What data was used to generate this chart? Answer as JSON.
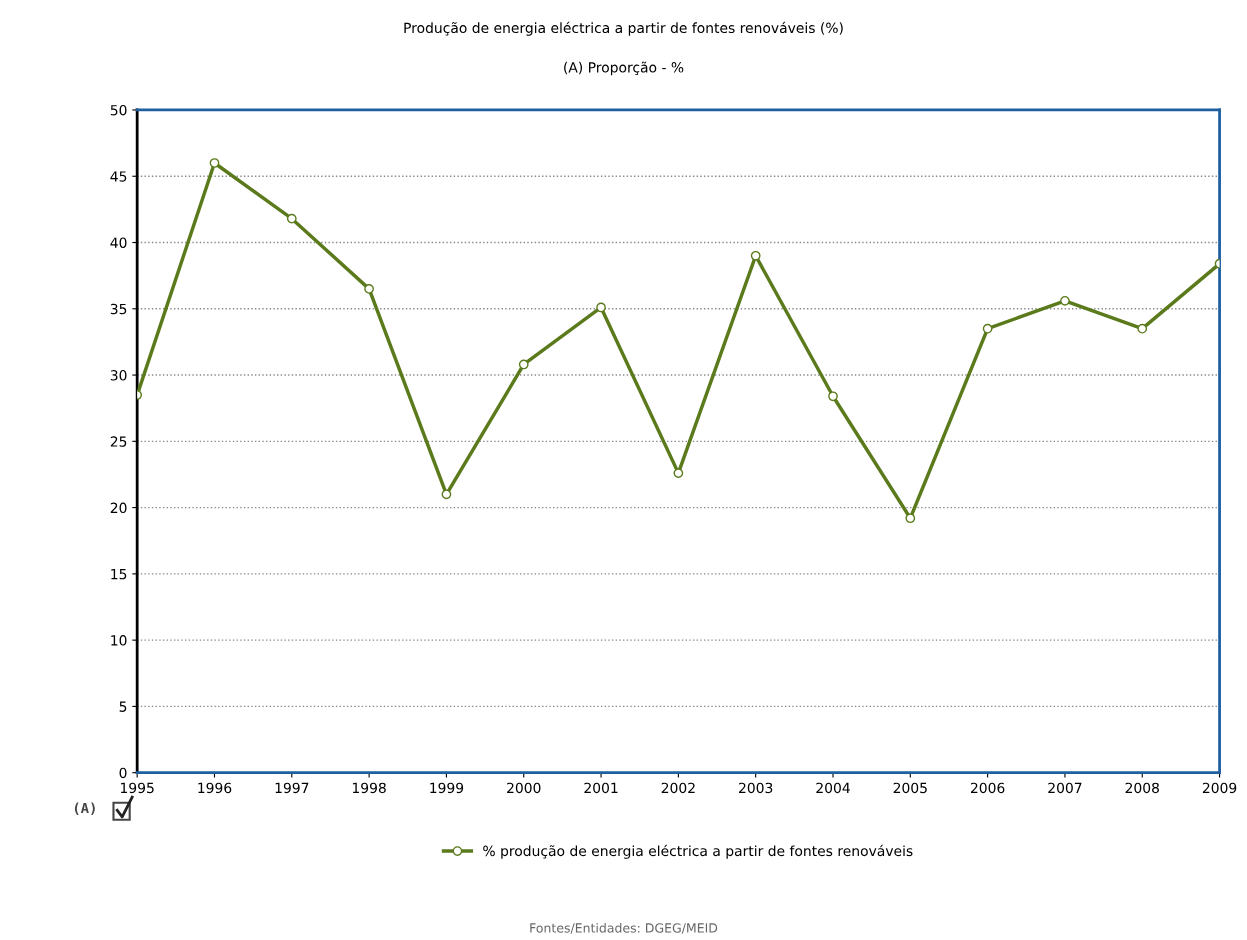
{
  "chart_data": {
    "type": "line",
    "title": "Produção de energia eléctrica a partir de fontes renováveis (%)",
    "subtitle": "(A) Proporção - %",
    "categories": [
      "1995",
      "1996",
      "1997",
      "1998",
      "1999",
      "2000",
      "2001",
      "2002",
      "2003",
      "2004",
      "2005",
      "2006",
      "2007",
      "2008",
      "2009"
    ],
    "series": [
      {
        "name": "% produção de energia eléctrica a partir de fontes renováveis",
        "color": "#5b7a1c",
        "values": [
          28.5,
          46.0,
          41.8,
          36.5,
          21.0,
          30.8,
          35.1,
          22.6,
          39.0,
          28.4,
          19.2,
          33.5,
          35.6,
          33.5,
          38.4
        ]
      }
    ],
    "ylim": [
      0,
      50
    ],
    "yticks": [
      0,
      5,
      10,
      15,
      20,
      25,
      30,
      35,
      40,
      45,
      50
    ],
    "grid": "y",
    "legend": "bottom",
    "marker": "circle",
    "line_style": "solid",
    "annotations": [
      "(A)",
      "Fontes/Entidades: DGEG/MEID"
    ]
  }
}
